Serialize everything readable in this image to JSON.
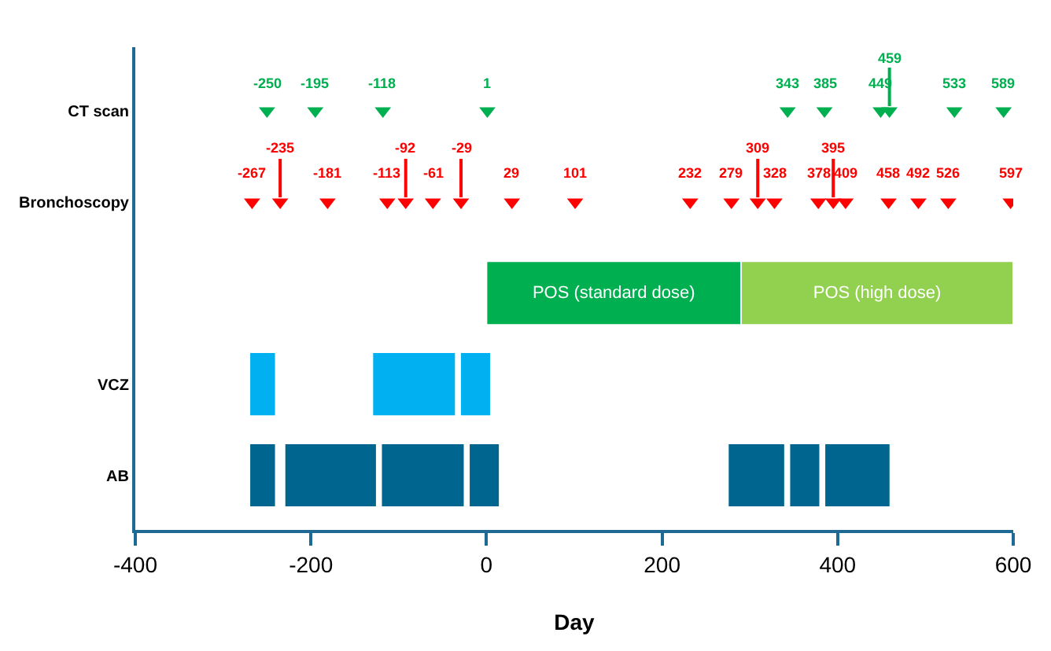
{
  "chart_data": {
    "type": "bar",
    "orientation": "horizontal",
    "xlabel": "Day",
    "categories": [
      "CT scan",
      "Bronchoscopy",
      null,
      "VCZ",
      "AB"
    ],
    "xlim": [
      -400,
      600
    ],
    "xticks": [
      -400,
      -200,
      0,
      200,
      400,
      600
    ],
    "series": [
      {
        "type": "scatter",
        "marker": "triangle",
        "data_labels": true,
        "colors": [
          "#00b050",
          "#ff0000",
          null,
          null,
          null
        ],
        "values": [
          -250,
          -267,
          null,
          null,
          null
        ]
      },
      {
        "type": "scatter",
        "marker": "triangle",
        "data_labels": true,
        "colors": [
          "#00b050",
          "#ff0000",
          null,
          null,
          null
        ],
        "values": [
          -195,
          -235,
          null,
          null,
          null
        ]
      },
      {
        "type": "scatter",
        "marker": "triangle",
        "data_labels": true,
        "colors": [
          "#00b050",
          "#ff0000",
          null,
          null,
          null
        ],
        "values": [
          -118,
          -181,
          null,
          null,
          null
        ]
      },
      {
        "type": "scatter",
        "marker": "triangle",
        "data_labels": true,
        "colors": [
          "#00b050",
          "#ff0000",
          null,
          null,
          null
        ],
        "values": [
          1,
          -113,
          null,
          null,
          null
        ]
      },
      {
        "type": "scatter",
        "marker": "triangle",
        "data_labels": true,
        "colors": [
          "#00b050",
          "#ff0000",
          null,
          null,
          null
        ],
        "values": [
          343,
          -92,
          null,
          null,
          null
        ]
      },
      {
        "type": "scatter",
        "marker": "triangle",
        "data_labels": true,
        "colors": [
          "#00b050",
          "#ff0000",
          null,
          null,
          null
        ],
        "values": [
          385,
          -61,
          null,
          null,
          null
        ]
      },
      {
        "type": "scatter",
        "marker": "triangle",
        "data_labels": true,
        "colors": [
          "#00b050",
          "#ff0000",
          null,
          null,
          null
        ],
        "values": [
          449,
          -29,
          null,
          null,
          null
        ]
      },
      {
        "type": "scatter",
        "marker": "triangle",
        "data_labels": true,
        "colors": [
          "#00b050",
          "#ff0000",
          null,
          null,
          null
        ],
        "values": [
          459,
          29,
          null,
          null,
          null
        ]
      },
      {
        "type": "scatter",
        "marker": "triangle",
        "data_labels": true,
        "colors": [
          "#00b050",
          "#ff0000",
          null,
          null,
          null
        ],
        "values": [
          533,
          101,
          null,
          null,
          null
        ]
      },
      {
        "type": "scatter",
        "marker": "triangle",
        "data_labels": true,
        "colors": [
          "#00b050",
          "#ff0000",
          null,
          null,
          null
        ],
        "values": [
          589,
          232,
          null,
          null,
          null
        ]
      },
      {
        "type": "scatter",
        "marker": "triangle",
        "data_labels": true,
        "colors": [
          null,
          "#ff0000",
          null,
          null,
          null
        ],
        "values": [
          null,
          279,
          null,
          null,
          null
        ]
      },
      {
        "type": "scatter",
        "marker": "triangle",
        "data_labels": true,
        "colors": [
          null,
          "#ff0000",
          null,
          null,
          null
        ],
        "values": [
          null,
          309,
          null,
          null,
          null
        ]
      },
      {
        "type": "scatter",
        "marker": "triangle",
        "data_labels": true,
        "colors": [
          null,
          "#ff0000",
          null,
          null,
          null
        ],
        "values": [
          null,
          328,
          null,
          null,
          null
        ]
      },
      {
        "type": "scatter",
        "marker": "triangle",
        "data_labels": true,
        "colors": [
          null,
          "#ff0000",
          null,
          null,
          null
        ],
        "values": [
          null,
          378,
          null,
          null,
          null
        ]
      },
      {
        "type": "scatter",
        "marker": "triangle",
        "data_labels": true,
        "colors": [
          null,
          "#ff0000",
          null,
          null,
          null
        ],
        "values": [
          null,
          395,
          null,
          null,
          null
        ]
      },
      {
        "type": "scatter",
        "marker": "triangle",
        "data_labels": true,
        "colors": [
          null,
          "#ff0000",
          null,
          null,
          null
        ],
        "values": [
          null,
          409,
          null,
          null,
          null
        ]
      },
      {
        "type": "scatter",
        "marker": "triangle",
        "data_labels": true,
        "colors": [
          null,
          "#ff0000",
          null,
          null,
          null
        ],
        "values": [
          null,
          458,
          null,
          null,
          null
        ]
      },
      {
        "type": "scatter",
        "marker": "triangle",
        "data_labels": true,
        "colors": [
          null,
          "#ff0000",
          null,
          null,
          null
        ],
        "values": [
          null,
          492,
          null,
          null,
          null
        ]
      },
      {
        "type": "scatter",
        "marker": "triangle",
        "data_labels": true,
        "colors": [
          null,
          "#ff0000",
          null,
          null,
          null
        ],
        "values": [
          null,
          526,
          null,
          null,
          null
        ]
      },
      {
        "type": "scatter",
        "marker": "triangle",
        "data_labels": true,
        "colors": [
          null,
          "#ff0000",
          null,
          null,
          null
        ],
        "values": [
          null,
          597,
          null,
          null,
          null
        ]
      },
      {
        "colors": [
          null,
          null,
          "#00b050",
          "#00b0f0",
          "#00668f"
        ],
        "base": [
          null,
          null,
          0,
          -270,
          -270
        ],
        "values": [
          null,
          null,
          290,
          30,
          30
        ],
        "value_labels": [
          null,
          null,
          "POS (standard dose)",
          null,
          null
        ]
      },
      {
        "colors": [
          null,
          null,
          "#92d050",
          "#00b0f0",
          "#00668f"
        ],
        "base": [
          null,
          null,
          290,
          -130,
          -230
        ],
        "values": [
          null,
          null,
          310,
          95,
          105
        ],
        "value_labels": [
          null,
          null,
          "POS (high dose)",
          null,
          null
        ]
      },
      {
        "colors": [
          null,
          null,
          null,
          "#00b0f0",
          "#00668f"
        ],
        "base": [
          null,
          null,
          null,
          -30,
          -120
        ],
        "values": [
          null,
          null,
          null,
          35,
          95
        ]
      },
      {
        "colors": [
          null,
          null,
          null,
          null,
          "#00668f"
        ],
        "base": [
          null,
          null,
          null,
          null,
          -20
        ],
        "values": [
          null,
          null,
          null,
          null,
          35
        ]
      },
      {
        "colors": [
          null,
          null,
          null,
          null,
          "#00668f"
        ],
        "base": [
          null,
          null,
          null,
          null,
          275
        ],
        "values": [
          null,
          null,
          null,
          null,
          65
        ]
      },
      {
        "colors": [
          null,
          null,
          null,
          null,
          "#00668f"
        ],
        "base": [
          null,
          null,
          null,
          null,
          345
        ],
        "values": [
          null,
          null,
          null,
          null,
          35
        ]
      },
      {
        "colors": [
          null,
          null,
          null,
          null,
          "#00668f"
        ],
        "base": [
          null,
          null,
          null,
          null,
          385
        ],
        "values": [
          null,
          null,
          null,
          null,
          75
        ]
      }
    ]
  }
}
